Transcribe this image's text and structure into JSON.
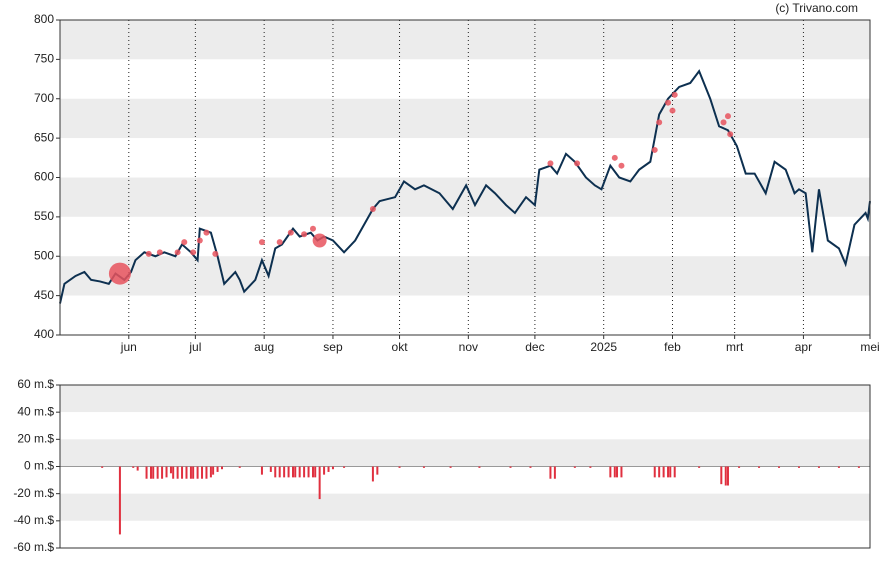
{
  "source": "(c) Trivano.com",
  "chart_data": [
    {
      "type": "line",
      "xlim": [
        0,
        365
      ],
      "xticks": [
        {
          "value": 31,
          "label": "jun"
        },
        {
          "value": 61,
          "label": "jul"
        },
        {
          "value": 92,
          "label": "aug"
        },
        {
          "value": 123,
          "label": "sep"
        },
        {
          "value": 153,
          "label": "okt"
        },
        {
          "value": 184,
          "label": "nov"
        },
        {
          "value": 214,
          "label": "dec"
        },
        {
          "value": 245,
          "label": "2025"
        },
        {
          "value": 276,
          "label": "feb"
        },
        {
          "value": 304,
          "label": "mrt"
        },
        {
          "value": 335,
          "label": "apr"
        },
        {
          "value": 365,
          "label": "mei"
        }
      ],
      "ylim": [
        400,
        800
      ],
      "yticks": [
        400,
        450,
        500,
        550,
        600,
        650,
        700,
        750,
        800
      ],
      "grid": true,
      "series": [
        {
          "color": "#0d3050",
          "x": [
            0,
            2,
            7,
            11,
            14,
            18,
            22,
            25,
            29,
            32,
            34,
            38,
            43,
            47,
            52,
            55,
            59,
            62,
            63,
            68,
            71,
            74,
            79,
            81,
            83,
            88,
            91,
            94,
            97,
            100,
            105,
            108,
            113,
            116,
            119,
            123,
            128,
            133,
            137,
            141,
            144,
            151,
            155,
            160,
            164,
            171,
            177,
            183,
            187,
            192,
            196,
            201,
            205,
            210,
            214,
            216,
            221,
            224,
            228,
            232,
            237,
            241,
            244,
            248,
            252,
            257,
            261,
            266,
            270,
            274,
            279,
            284,
            288,
            293,
            297,
            301,
            303,
            305,
            309,
            313,
            318,
            322,
            327,
            331,
            333,
            336,
            339,
            342,
            346,
            351,
            354,
            358,
            363,
            364,
            365
          ],
          "values": [
            440,
            465,
            475,
            480,
            470,
            468,
            465,
            478,
            470,
            480,
            495,
            505,
            500,
            505,
            500,
            515,
            505,
            495,
            535,
            530,
            500,
            465,
            480,
            470,
            455,
            470,
            495,
            475,
            510,
            515,
            535,
            525,
            530,
            520,
            525,
            520,
            505,
            520,
            540,
            560,
            570,
            575,
            595,
            585,
            590,
            580,
            560,
            590,
            565,
            590,
            580,
            565,
            555,
            575,
            565,
            610,
            615,
            605,
            630,
            620,
            600,
            590,
            585,
            615,
            600,
            595,
            610,
            620,
            680,
            700,
            715,
            720,
            735,
            700,
            665,
            660,
            650,
            640,
            605,
            605,
            580,
            620,
            610,
            580,
            585,
            580,
            505,
            585,
            520,
            510,
            490,
            540,
            555,
            548,
            570
          ]
        },
        {
          "type": "scatter",
          "color": "#e8545e",
          "x": [
            27,
            117,
            40,
            45,
            53,
            56,
            60,
            63,
            66,
            70,
            91,
            99,
            104,
            110,
            114,
            141,
            221,
            233,
            250,
            253,
            268,
            270,
            274,
            276,
            277,
            301,
            299,
            302
          ],
          "values": [
            478,
            520,
            503,
            505,
            505,
            518,
            505,
            520,
            530,
            503,
            518,
            518,
            530,
            528,
            535,
            560,
            618,
            618,
            625,
            615,
            635,
            670,
            695,
            685,
            705,
            678,
            670,
            655
          ],
          "sizes": [
            11,
            7,
            3,
            3,
            3,
            3,
            3,
            3,
            3,
            3,
            3,
            3,
            3,
            3,
            3,
            3,
            3,
            3,
            3,
            3,
            3,
            3,
            3,
            3,
            3,
            3,
            3,
            3
          ]
        }
      ]
    },
    {
      "type": "bar",
      "xlim": [
        0,
        365
      ],
      "ylim": [
        -60,
        60
      ],
      "yticks": [
        {
          "value": -60,
          "label": "-60 m.$"
        },
        {
          "value": -40,
          "label": "-40 m.$"
        },
        {
          "value": -20,
          "label": "-20 m.$"
        },
        {
          "value": 0,
          "label": "0 m.$"
        },
        {
          "value": 20,
          "label": "20 m.$"
        },
        {
          "value": 40,
          "label": "40 m.$"
        },
        {
          "value": 60,
          "label": "60 m.$"
        }
      ],
      "color": "#e0303f",
      "x": [
        19,
        27,
        33,
        35,
        39,
        41,
        42,
        44,
        46,
        48,
        50,
        51,
        53,
        55,
        57,
        59,
        60,
        62,
        64,
        66,
        68,
        69,
        71,
        73,
        81,
        91,
        95,
        97,
        99,
        101,
        103,
        105,
        106,
        108,
        110,
        112,
        114,
        115,
        117,
        119,
        121,
        123,
        128,
        141,
        143,
        153,
        164,
        176,
        189,
        203,
        212,
        221,
        223,
        232,
        239,
        248,
        250,
        251,
        253,
        268,
        270,
        272,
        274,
        275,
        277,
        288,
        298,
        300,
        301,
        306,
        315,
        324,
        333,
        342,
        351,
        360
      ],
      "values": [
        -1,
        -50,
        -1,
        -3,
        -9,
        -9,
        -9,
        -9,
        -9,
        -8,
        -5,
        -9,
        -9,
        -9,
        -9,
        -9,
        -9,
        -9,
        -9,
        -9,
        -8,
        -6,
        -4,
        -2,
        -1,
        -6,
        -4,
        -8,
        -8,
        -8,
        -8,
        -8,
        -8,
        -8,
        -8,
        -8,
        -8,
        -8,
        -24,
        -6,
        -4,
        -2,
        -1,
        -11,
        -6,
        -1,
        -1,
        -1,
        -1,
        -1,
        -1,
        -9,
        -9,
        -1,
        -1,
        -8,
        -8,
        -8,
        -8,
        -8,
        -8,
        -8,
        -8,
        -8,
        -8,
        -1,
        -13,
        -14,
        -14,
        -1,
        -1,
        -1,
        -1,
        -1,
        -1,
        -1
      ]
    }
  ]
}
